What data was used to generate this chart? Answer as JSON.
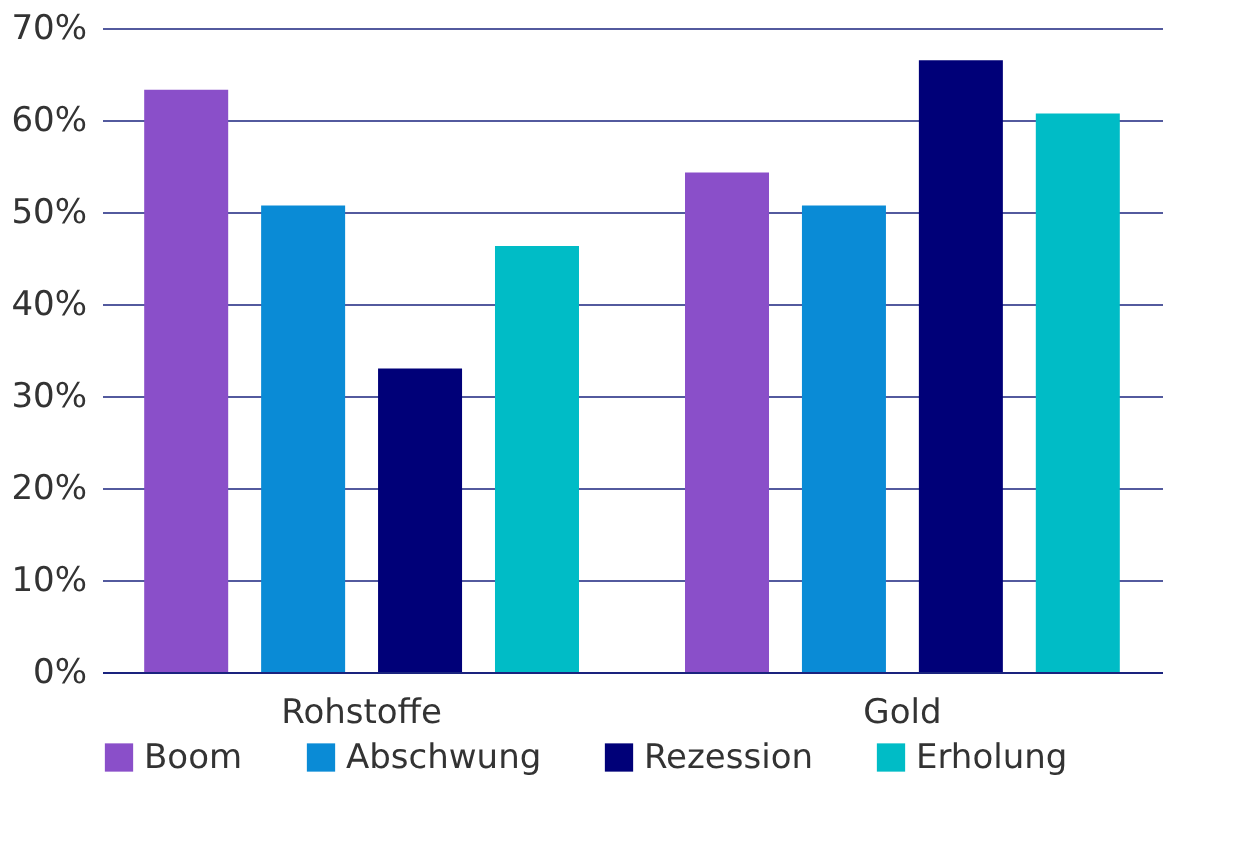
{
  "chart_data": {
    "type": "bar",
    "categories": [
      "Rohstoffe",
      "Gold"
    ],
    "series": [
      {
        "name": "Boom",
        "color": "#8a4fc9",
        "values": [
          63.3,
          54.3
        ]
      },
      {
        "name": "Abschwung",
        "color": "#0a8bd6",
        "values": [
          50.7,
          50.7
        ]
      },
      {
        "name": "Rezession",
        "color": "#000078",
        "values": [
          33.0,
          66.5
        ]
      },
      {
        "name": "Erholung",
        "color": "#00bcc6",
        "values": [
          46.3,
          60.7
        ]
      }
    ],
    "ylim": [
      0,
      70
    ],
    "yticks": [
      {
        "value": 0,
        "label": "0%"
      },
      {
        "value": 10,
        "label": "10%"
      },
      {
        "value": 20,
        "label": "20%"
      },
      {
        "value": 30,
        "label": "30%"
      },
      {
        "value": 40,
        "label": "40%"
      },
      {
        "value": 50,
        "label": "50%"
      },
      {
        "value": 60,
        "label": "60%"
      },
      {
        "value": 70,
        "label": "70%"
      }
    ],
    "grid": "y",
    "legend": "bottom"
  }
}
